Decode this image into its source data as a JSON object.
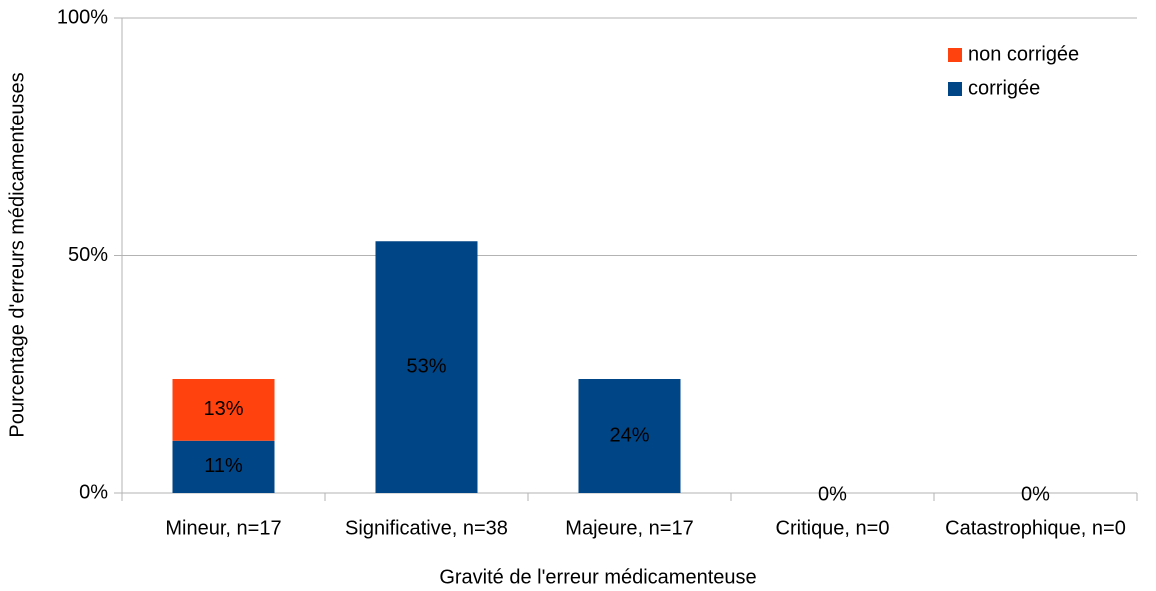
{
  "chart_data": {
    "type": "bar",
    "stacked": true,
    "x_label": "Gravité de l'erreur médicamenteuse",
    "y_label": "Pourcentage d'erreurs médicamenteuses",
    "categories": [
      "Mineur, n=17",
      "Significative, n=38",
      "Majeure, n=17",
      "Critique, n=0",
      "Catastrophique, n=0"
    ],
    "series": [
      {
        "name": "corrigée",
        "color": "#004586",
        "values": [
          11,
          53,
          24,
          0,
          0
        ],
        "value_labels": [
          "11%",
          "53%",
          "24%",
          "0%",
          "0%"
        ]
      },
      {
        "name": "non corrigée",
        "color": "#ff420e",
        "values": [
          13,
          0,
          0,
          0,
          0
        ],
        "value_labels": [
          "13%",
          null,
          null,
          null,
          null
        ]
      }
    ],
    "ylim": [
      0,
      100
    ],
    "yticks": [
      {
        "value": 0,
        "label": "0%"
      },
      {
        "value": 50,
        "label": "50%"
      },
      {
        "value": 100,
        "label": "100%"
      }
    ],
    "grid": true,
    "legend": "upper right"
  }
}
